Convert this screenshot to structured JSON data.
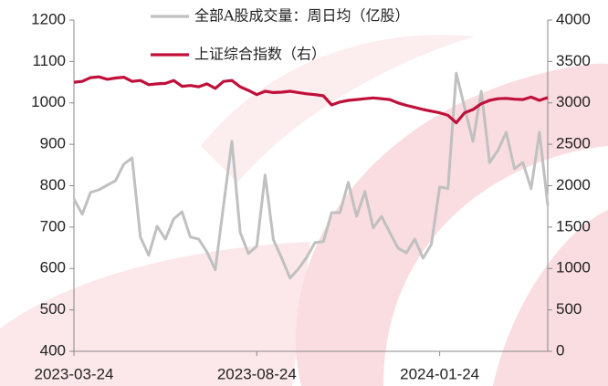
{
  "chart_data": {
    "type": "line",
    "categories": [
      "2023-03-24",
      null,
      null,
      null,
      null,
      null,
      null,
      null,
      null,
      null,
      null,
      null,
      null,
      null,
      null,
      null,
      null,
      null,
      null,
      null,
      null,
      null,
      "2023-08-24",
      null,
      null,
      null,
      null,
      null,
      null,
      null,
      null,
      null,
      null,
      null,
      null,
      null,
      null,
      null,
      null,
      null,
      null,
      null,
      null,
      null,
      "2024-01-24",
      null,
      null,
      null,
      null,
      null,
      null,
      null,
      null,
      null,
      null,
      null,
      null,
      null
    ],
    "series": [
      {
        "name": "全部A股成交量：周日均（亿股）",
        "color": "#c0c0c0",
        "values": [
          768,
          731,
          784,
          790,
          801,
          812,
          852,
          867,
          676,
          632,
          702,
          671,
          720,
          737,
          676,
          671,
          640,
          597,
          753,
          907,
          687,
          636,
          654,
          826,
          669,
          625,
          577,
          599,
          627,
          663,
          665,
          735,
          735,
          808,
          726,
          786,
          698,
          726,
          687,
          649,
          638,
          671,
          625,
          658,
          797,
          793,
          1072,
          989,
          907,
          1028,
          856,
          885,
          929,
          841,
          856,
          793,
          929,
          753
        ]
      },
      {
        "name": "上证综合指数（右）",
        "color": "#c0103a",
        "axis": "y2",
        "values": [
          3250,
          3260,
          3305,
          3315,
          3285,
          3300,
          3310,
          3260,
          3270,
          3220,
          3230,
          3235,
          3270,
          3200,
          3210,
          3195,
          3230,
          3175,
          3260,
          3270,
          3195,
          3150,
          3100,
          3140,
          3125,
          3130,
          3140,
          3125,
          3110,
          3100,
          3085,
          2975,
          3010,
          3030,
          3040,
          3050,
          3060,
          3050,
          3040,
          3000,
          2970,
          2945,
          2920,
          2900,
          2880,
          2850,
          2760,
          2880,
          2920,
          2990,
          3030,
          3050,
          3055,
          3045,
          3040,
          3070,
          3030,
          3065
        ]
      }
    ],
    "ylim": [
      400,
      1200
    ],
    "yticks": [
      400,
      500,
      600,
      700,
      800,
      900,
      1000,
      1100,
      1200
    ],
    "y2lim": [
      0,
      4000
    ],
    "y2ticks": [
      0,
      500,
      1000,
      1500,
      2000,
      2500,
      3000,
      3500,
      4000
    ]
  }
}
